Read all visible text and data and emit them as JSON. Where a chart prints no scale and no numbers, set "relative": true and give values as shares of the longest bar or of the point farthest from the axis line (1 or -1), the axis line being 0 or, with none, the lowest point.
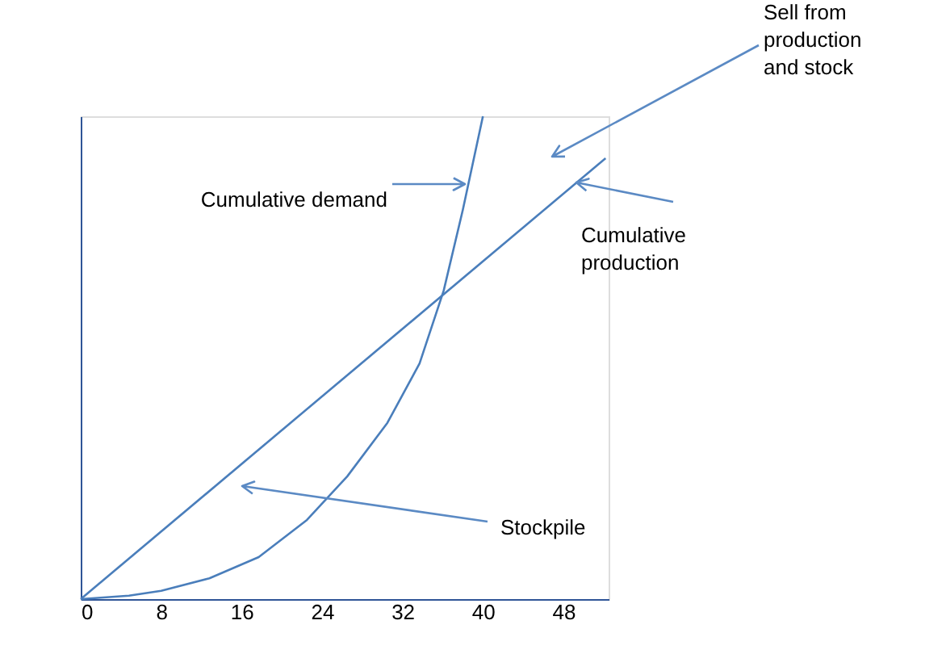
{
  "chart_data": {
    "type": "line",
    "relative": true,
    "xlim": [
      0,
      52.5
    ],
    "xticks": [
      0,
      8,
      16,
      24,
      32,
      40,
      48
    ],
    "tick_labels": "x",
    "grid": false,
    "marker": "none",
    "line_style": "solid",
    "series": [
      {
        "color": "#4a7ebb",
        "x": [
          0,
          52.2
        ],
        "values": [
          0,
          0.913
        ]
      },
      {
        "color": "#4a7ebb",
        "x": [
          0,
          4.8,
          8.0,
          12.8,
          17.7,
          22.5,
          26.5,
          30.5,
          33.7,
          36.1,
          38.0,
          40.0
        ],
        "values": [
          0,
          0.007,
          0.017,
          0.043,
          0.087,
          0.164,
          0.254,
          0.365,
          0.488,
          0.639,
          0.806,
          1
        ]
      }
    ],
    "annotations": [
      "Sell from production and stock",
      "Cumulative demand",
      "Cumulative production",
      "Stockpile"
    ]
  }
}
